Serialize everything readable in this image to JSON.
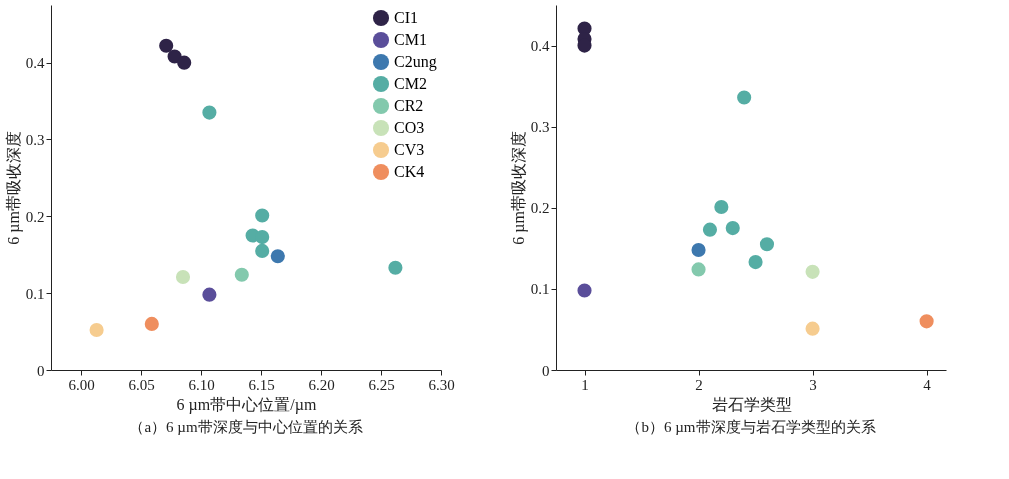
{
  "chart_data": [
    {
      "type": "scatter",
      "title": "（a）6 µm带深度与中心位置的关系",
      "xlabel": "6 µm带中心位置/µm",
      "ylabel": "6 µm带吸收深度",
      "marker": "circle",
      "legend": "top right",
      "grid": false,
      "xlim": [
        5.975,
        6.3
      ],
      "xticks": [
        {
          "value": 6.0,
          "label": "6.00"
        },
        {
          "value": 6.05,
          "label": "6.05"
        },
        {
          "value": 6.1,
          "label": "6.10"
        },
        {
          "value": 6.15,
          "label": "6.15"
        },
        {
          "value": 6.2,
          "label": "6.20"
        },
        {
          "value": 6.25,
          "label": "6.25"
        },
        {
          "value": 6.3,
          "label": "6.30"
        }
      ],
      "ylim": [
        0,
        0.475
      ],
      "yticks": [
        0,
        0.1,
        0.2,
        0.3,
        0.4
      ],
      "series": [
        {
          "name": "CI1",
          "color": "#2e2347",
          "x": [
            6.071,
            6.078,
            6.086
          ],
          "values": [
            0.422,
            0.408,
            0.4
          ]
        },
        {
          "name": "CM1",
          "color": "#5a4e9a",
          "x": [
            6.107
          ],
          "values": [
            0.098
          ]
        },
        {
          "name": "C2ung",
          "color": "#3d78ae",
          "x": [
            6.164
          ],
          "values": [
            0.148
          ]
        },
        {
          "name": "CM2",
          "color": "#55ada4",
          "x": [
            6.107,
            6.151,
            6.143,
            6.151,
            6.151,
            6.262
          ],
          "values": [
            0.335,
            0.201,
            0.175,
            0.173,
            0.155,
            0.133
          ]
        },
        {
          "name": "CR2",
          "color": "#83c9ad",
          "x": [
            6.134
          ],
          "values": [
            0.124
          ]
        },
        {
          "name": "CO3",
          "color": "#c8e2b8",
          "x": [
            6.085
          ],
          "values": [
            0.121
          ]
        },
        {
          "name": "CV3",
          "color": "#f6cc8f",
          "x": [
            6.013
          ],
          "values": [
            0.052
          ]
        },
        {
          "name": "CK4",
          "color": "#ef8e5e",
          "x": [
            6.059
          ],
          "values": [
            0.06
          ]
        }
      ]
    },
    {
      "type": "scatter",
      "title": "（b）6 µm带深度与岩石学类型的关系",
      "xlabel": "岩石学类型",
      "ylabel": "6 µm带吸收深度",
      "marker": "circle",
      "grid": false,
      "xlim": [
        0.75,
        4.17
      ],
      "xticks": [
        1,
        2,
        3,
        4
      ],
      "ylim": [
        0,
        0.45
      ],
      "yticks": [
        0,
        0.1,
        0.2,
        0.3,
        0.4
      ],
      "series": [
        {
          "color": "#2e2347",
          "x": [
            1,
            1,
            1
          ],
          "values": [
            0.421,
            0.408,
            0.4
          ]
        },
        {
          "color": "#5a4e9a",
          "x": [
            1
          ],
          "values": [
            0.098
          ]
        },
        {
          "color": "#3d78ae",
          "x": [
            2
          ],
          "values": [
            0.148
          ]
        },
        {
          "color": "#55ada4",
          "x": [
            2.4,
            2.2,
            2.1,
            2.3,
            2.6,
            2.5
          ],
          "values": [
            0.336,
            0.201,
            0.173,
            0.175,
            0.155,
            0.133
          ]
        },
        {
          "color": "#83c9ad",
          "x": [
            2
          ],
          "values": [
            0.124
          ]
        },
        {
          "color": "#c8e2b8",
          "x": [
            3
          ],
          "values": [
            0.121
          ]
        },
        {
          "color": "#f6cc8f",
          "x": [
            3
          ],
          "values": [
            0.051
          ]
        },
        {
          "color": "#ef8e5e",
          "x": [
            4
          ],
          "values": [
            0.06
          ]
        }
      ]
    }
  ]
}
